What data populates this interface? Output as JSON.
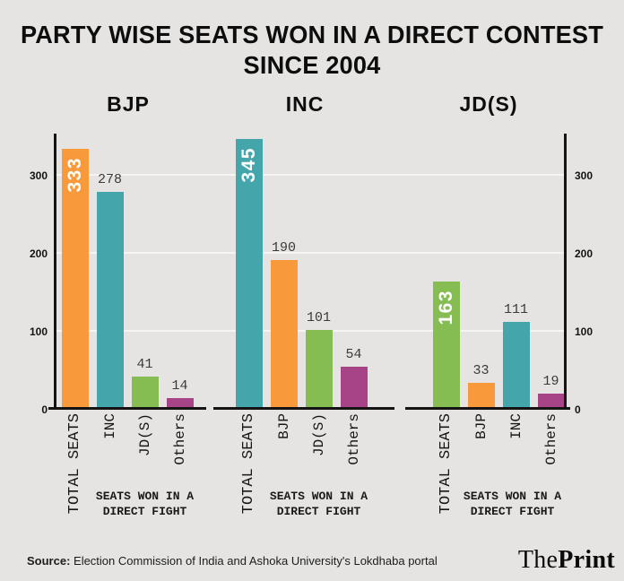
{
  "title": {
    "line1": "PARTY WISE SEATS WON IN A DIRECT CONTEST",
    "line2": "SINCE 2004"
  },
  "y_axis": {
    "ticks": [
      0,
      100,
      200,
      300
    ],
    "max": 352
  },
  "total_seats_label": "TOTAL SEATS",
  "caption": {
    "line1": "SEATS WON IN A",
    "line2": "DIRECT FIGHT"
  },
  "party_colors": {
    "BJP": "#F8993B",
    "INC": "#44A6AA",
    "JDS": "#85BD52",
    "Others": "#A74487"
  },
  "panels": [
    {
      "title": "BJP",
      "axis": "left",
      "total": {
        "label": "TOTAL SEATS",
        "value": 333,
        "color": "#F8993B"
      },
      "direct_bars": [
        {
          "label": "INC",
          "value": 278,
          "color": "#44A6AA"
        },
        {
          "label": "JD(S)",
          "value": 41,
          "color": "#85BD52"
        },
        {
          "label": "Others",
          "value": 14,
          "color": "#A74487"
        }
      ]
    },
    {
      "title": "INC",
      "axis": "none",
      "total": {
        "label": "TOTAL SEATS",
        "value": 345,
        "color": "#44A6AA"
      },
      "direct_bars": [
        {
          "label": "BJP",
          "value": 190,
          "color": "#F8993B"
        },
        {
          "label": "JD(S)",
          "value": 101,
          "color": "#85BD52"
        },
        {
          "label": "Others",
          "value": 54,
          "color": "#A74487"
        }
      ]
    },
    {
      "title": "JD(S)",
      "axis": "right",
      "total": {
        "label": "TOTAL SEATS",
        "value": 163,
        "color": "#85BD52"
      },
      "direct_bars": [
        {
          "label": "BJP",
          "value": 33,
          "color": "#F8993B"
        },
        {
          "label": "INC",
          "value": 111,
          "color": "#44A6AA"
        },
        {
          "label": "Others",
          "value": 19,
          "color": "#A74487"
        }
      ]
    }
  ],
  "source": {
    "label": "Source:",
    "text": " Election Commission of India and Ashoka University's Lokdhaba portal"
  },
  "logo": {
    "the": "The",
    "print": "Print"
  },
  "chart_data": [
    {
      "type": "bar",
      "title": "BJP",
      "categories": [
        "TOTAL SEATS",
        "INC",
        "JD(S)",
        "Others"
      ],
      "values": [
        333,
        278,
        41,
        14
      ],
      "xlabel": "SEATS WON IN A DIRECT FIGHT",
      "ylabel": "",
      "ylim": [
        0,
        352
      ],
      "yticks": [
        0,
        100,
        200,
        300
      ],
      "grid": true,
      "legend": false,
      "note": "bars 2-4 sit on shaded background labelled 'SEATS WON IN A DIRECT FIGHT'"
    },
    {
      "type": "bar",
      "title": "INC",
      "categories": [
        "TOTAL SEATS",
        "BJP",
        "JD(S)",
        "Others"
      ],
      "values": [
        345,
        190,
        101,
        54
      ],
      "xlabel": "SEATS WON IN A DIRECT FIGHT",
      "ylabel": "",
      "ylim": [
        0,
        352
      ],
      "yticks": [
        0,
        100,
        200,
        300
      ],
      "grid": true,
      "legend": false
    },
    {
      "type": "bar",
      "title": "JD(S)",
      "categories": [
        "TOTAL SEATS",
        "BJP",
        "INC",
        "Others"
      ],
      "values": [
        163,
        33,
        111,
        19
      ],
      "xlabel": "SEATS WON IN A DIRECT FIGHT",
      "ylabel": "",
      "ylim": [
        0,
        352
      ],
      "yticks": [
        0,
        100,
        200,
        300
      ],
      "grid": true,
      "legend": false
    }
  ]
}
